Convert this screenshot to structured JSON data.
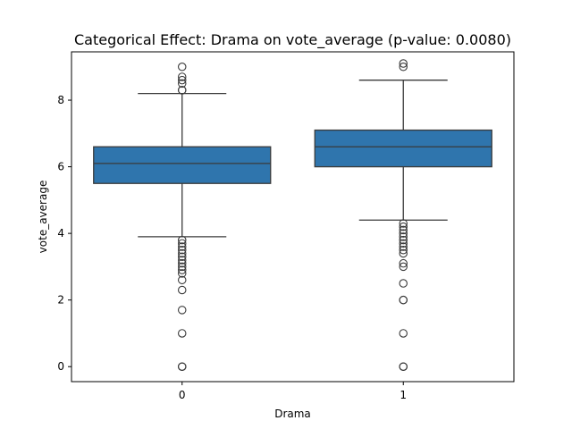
{
  "chart_data": {
    "type": "box",
    "title": "Categorical Effect: Drama on vote_average (p-value: 0.0080)",
    "xlabel": "Drama",
    "ylabel": "vote_average",
    "categories": [
      "0",
      "1"
    ],
    "ylim": [
      -0.45,
      9.45
    ],
    "yticks": [
      0,
      2,
      4,
      6,
      8
    ],
    "box_color": "#2f75ad",
    "line_color": "#3a3a3a",
    "boxes": [
      {
        "category": "0",
        "whisker_low": 3.9,
        "q1": 5.5,
        "median": 6.1,
        "q3": 6.6,
        "whisker_high": 8.2,
        "outliers": [
          9.0,
          8.7,
          8.6,
          8.5,
          8.3,
          8.3,
          3.8,
          3.7,
          3.6,
          3.5,
          3.4,
          3.3,
          3.2,
          3.1,
          3.0,
          2.9,
          2.8,
          2.6,
          2.3,
          1.7,
          1.0,
          0.0,
          0.0
        ]
      },
      {
        "category": "1",
        "whisker_low": 4.4,
        "q1": 6.0,
        "median": 6.6,
        "q3": 7.1,
        "whisker_high": 8.6,
        "outliers": [
          9.1,
          9.0,
          4.3,
          4.2,
          4.1,
          4.0,
          3.9,
          3.8,
          3.7,
          3.6,
          3.5,
          3.4,
          3.1,
          3.0,
          2.5,
          2.0,
          2.0,
          1.0,
          0.0,
          0.0
        ]
      }
    ]
  }
}
